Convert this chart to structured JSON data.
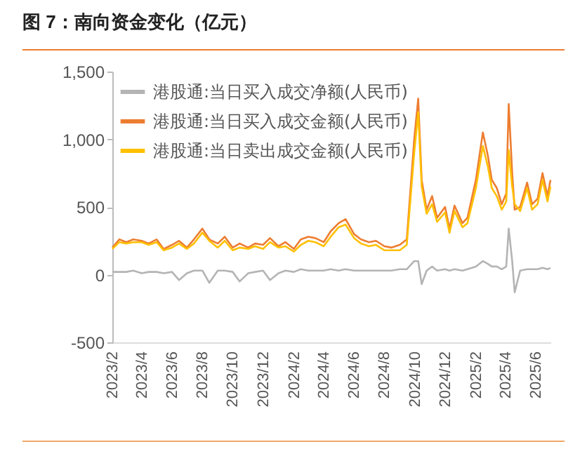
{
  "chart_data": {
    "type": "line",
    "title": "图 7：南向资金变化（亿元）",
    "x": [
      "2023-02-01",
      "2023-02-15",
      "2023-03-01",
      "2023-03-15",
      "2023-04-01",
      "2023-04-15",
      "2023-05-01",
      "2023-05-15",
      "2023-06-01",
      "2023-06-15",
      "2023-07-01",
      "2023-07-15",
      "2023-08-01",
      "2023-08-15",
      "2023-09-01",
      "2023-09-15",
      "2023-10-01",
      "2023-10-15",
      "2023-11-01",
      "2023-11-15",
      "2023-12-01",
      "2023-12-15",
      "2024-01-01",
      "2024-01-15",
      "2024-02-01",
      "2024-02-15",
      "2024-03-01",
      "2024-03-15",
      "2024-04-01",
      "2024-04-15",
      "2024-05-01",
      "2024-05-15",
      "2024-06-01",
      "2024-06-15",
      "2024-07-01",
      "2024-07-15",
      "2024-08-01",
      "2024-08-15",
      "2024-09-01",
      "2024-09-15",
      "2024-09-30",
      "2024-10-08",
      "2024-10-15",
      "2024-10-25",
      "2024-11-05",
      "2024-11-15",
      "2024-12-01",
      "2024-12-10",
      "2024-12-20",
      "2025-01-05",
      "2025-01-15",
      "2025-02-01",
      "2025-02-15",
      "2025-02-25",
      "2025-03-05",
      "2025-03-15",
      "2025-03-25",
      "2025-04-03",
      "2025-04-08",
      "2025-04-15",
      "2025-04-20",
      "2025-05-01",
      "2025-05-15",
      "2025-05-25",
      "2025-06-05",
      "2025-06-15",
      "2025-06-25",
      "2025-07-01"
    ],
    "series": [
      {
        "name": "港股通:当日买入成交净额(人民币)",
        "color": "#b4b4b4",
        "values": [
          20,
          20,
          20,
          30,
          10,
          20,
          20,
          10,
          20,
          -40,
          10,
          30,
          30,
          -60,
          30,
          30,
          20,
          -50,
          10,
          20,
          30,
          -40,
          10,
          30,
          20,
          40,
          30,
          30,
          30,
          40,
          30,
          40,
          30,
          30,
          30,
          30,
          30,
          30,
          40,
          40,
          100,
          100,
          -70,
          30,
          60,
          30,
          40,
          30,
          40,
          30,
          40,
          60,
          100,
          80,
          60,
          60,
          40,
          60,
          340,
          100,
          -130,
          30,
          40,
          40,
          40,
          50,
          40,
          50
        ]
      },
      {
        "name": "港股通:当日买入成交金额(人民币)",
        "color": "#ed7d31",
        "values": [
          200,
          260,
          240,
          260,
          250,
          230,
          260,
          190,
          220,
          250,
          200,
          260,
          340,
          260,
          230,
          280,
          200,
          230,
          200,
          230,
          220,
          270,
          210,
          240,
          190,
          260,
          280,
          270,
          240,
          320,
          380,
          410,
          300,
          260,
          240,
          250,
          210,
          200,
          220,
          260,
          1000,
          1300,
          700,
          480,
          580,
          420,
          500,
          340,
          510,
          380,
          420,
          700,
          1050,
          880,
          700,
          640,
          520,
          600,
          1260,
          750,
          480,
          500,
          680,
          520,
          560,
          750,
          580,
          700
        ]
      },
      {
        "name": "港股通:当日卖出成交金额(人民币)",
        "color": "#ffc000",
        "values": [
          190,
          240,
          230,
          240,
          240,
          220,
          240,
          180,
          200,
          230,
          190,
          230,
          310,
          250,
          200,
          250,
          180,
          200,
          190,
          210,
          190,
          240,
          200,
          210,
          170,
          220,
          250,
          240,
          210,
          280,
          350,
          370,
          270,
          230,
          210,
          220,
          180,
          180,
          180,
          220,
          900,
          1200,
          650,
          450,
          520,
          390,
          460,
          310,
          470,
          350,
          380,
          640,
          950,
          800,
          640,
          580,
          480,
          540,
          920,
          650,
          520,
          470,
          640,
          480,
          520,
          700,
          540,
          650
        ]
      }
    ],
    "xlim": [
      "2023-02-01",
      "2025-07-01"
    ],
    "xticks": [
      {
        "value": "2023-02-01",
        "label": "2023/2"
      },
      {
        "value": "2023-04-01",
        "label": "2023/4"
      },
      {
        "value": "2023-06-01",
        "label": "2023/6"
      },
      {
        "value": "2023-08-01",
        "label": "2023/8"
      },
      {
        "value": "2023-10-01",
        "label": "2023/10"
      },
      {
        "value": "2023-12-01",
        "label": "2023/12"
      },
      {
        "value": "2024-02-01",
        "label": "2024/2"
      },
      {
        "value": "2024-04-01",
        "label": "2024/4"
      },
      {
        "value": "2024-06-01",
        "label": "2024/6"
      },
      {
        "value": "2024-08-01",
        "label": "2024/8"
      },
      {
        "value": "2024-10-01",
        "label": "2024/10"
      },
      {
        "value": "2024-12-01",
        "label": "2024/12"
      },
      {
        "value": "2025-02-01",
        "label": "2025/2"
      },
      {
        "value": "2025-04-01",
        "label": "2025/4"
      },
      {
        "value": "2025-06-01",
        "label": "2025/6"
      }
    ],
    "ylim": [
      -500,
      1500
    ],
    "yticks": [
      -500,
      0,
      500,
      {
        "value": 1000,
        "label": "1,000"
      },
      {
        "value": 1500,
        "label": "1,500"
      }
    ],
    "legend": "top left"
  }
}
